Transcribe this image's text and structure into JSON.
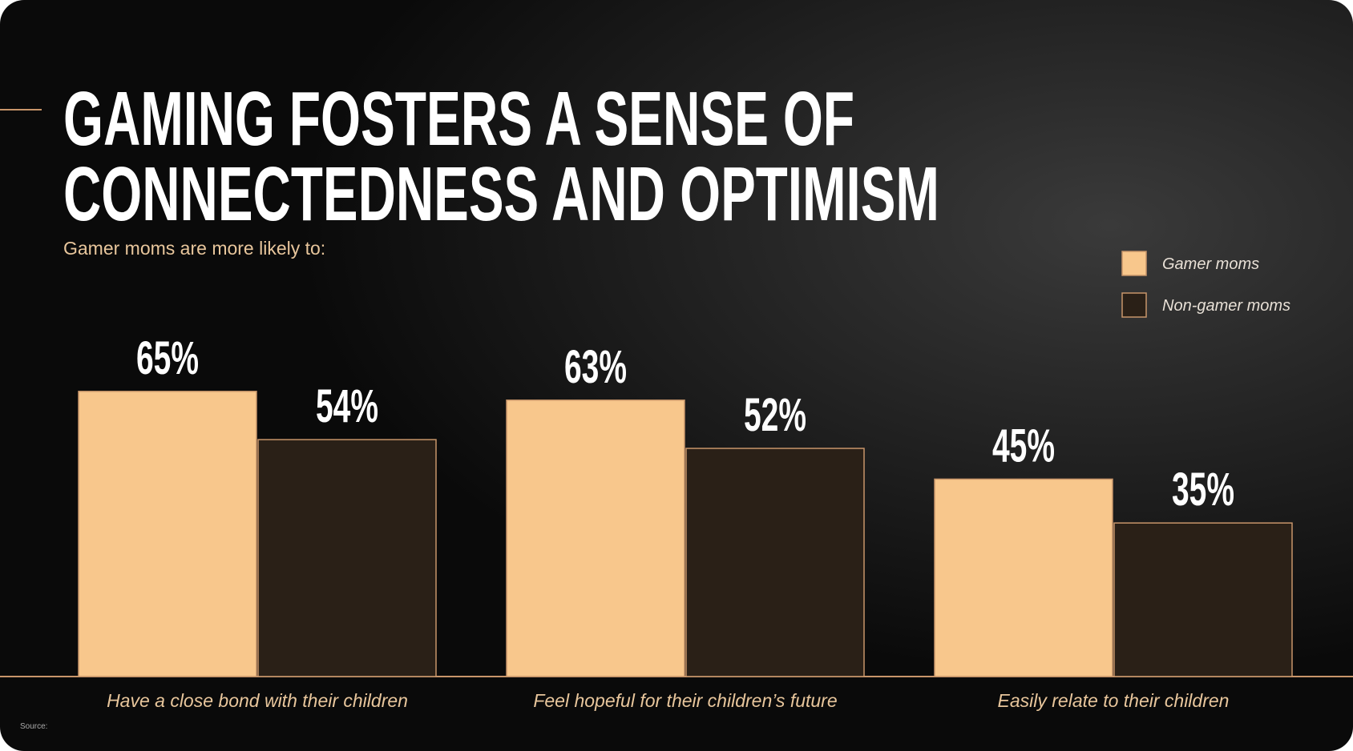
{
  "chart_data": {
    "type": "bar",
    "title": [
      "GAMING FOSTERS A SENSE OF",
      "CONNECTEDNESS AND OPTIMISM"
    ],
    "subtitle": "Gamer moms are more likely to:",
    "categories": [
      "Have a close bond with their children",
      "Feel hopeful for their children’s future",
      "Easily relate to their children"
    ],
    "series": [
      {
        "name": "Gamer moms",
        "color": "#f8c78c",
        "values": [
          65,
          63,
          45
        ],
        "value_labels": [
          "65%",
          "63%",
          "45%"
        ]
      },
      {
        "name": "Non-gamer moms",
        "color": "#2a2017",
        "values": [
          54,
          52,
          35
        ],
        "value_labels": [
          "54%",
          "52%",
          "35%"
        ]
      }
    ],
    "ylim": [
      0,
      100
    ],
    "legend": "top-right",
    "footnote": "Source:"
  }
}
